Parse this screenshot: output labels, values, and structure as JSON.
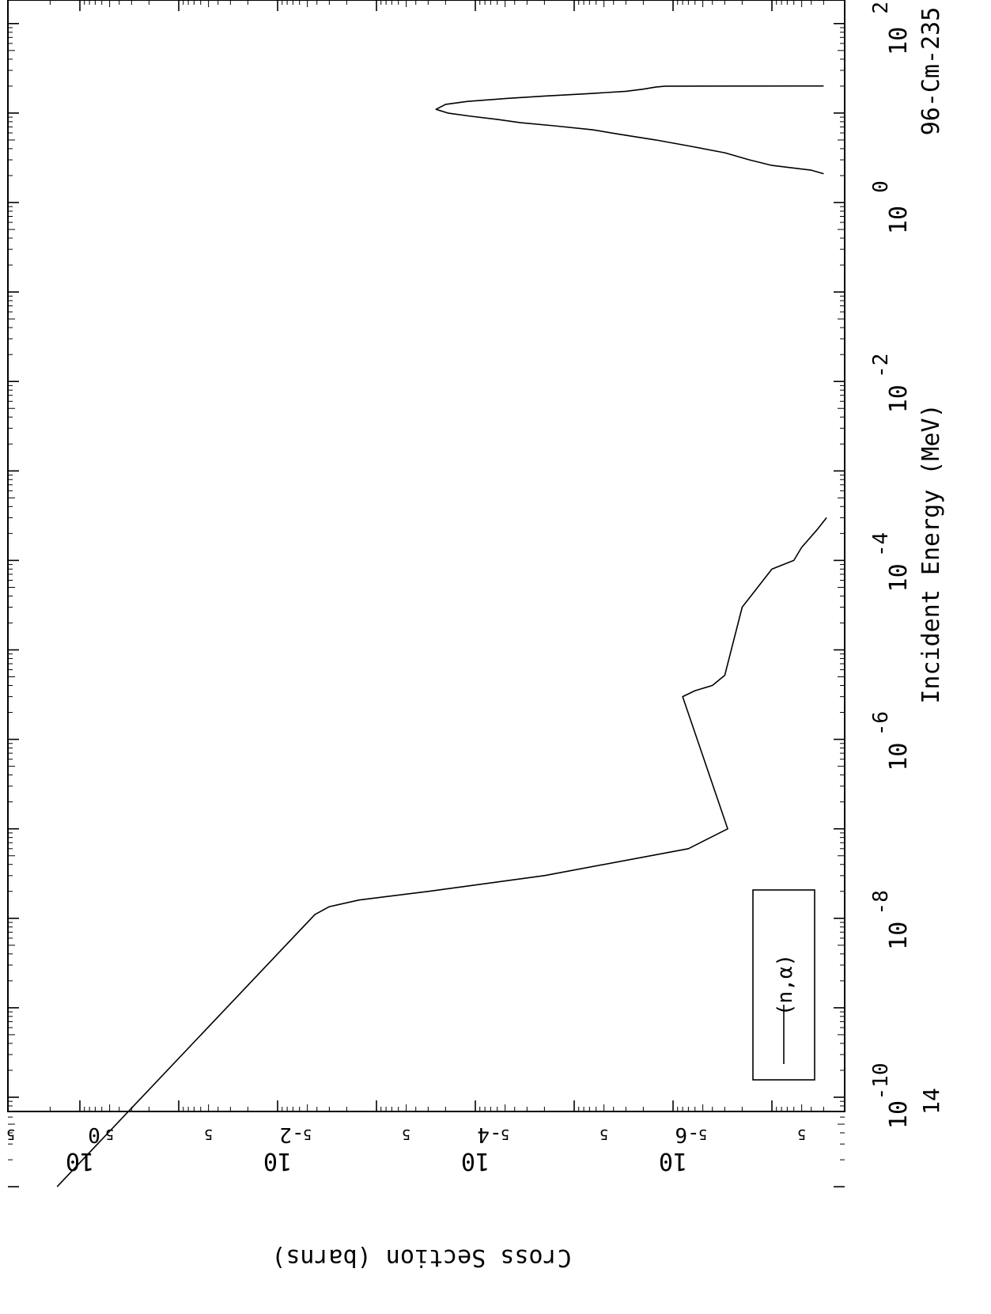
{
  "chart_data": {
    "type": "line",
    "orientation": "rotated-90",
    "x_scale": "log",
    "y_scale": "log",
    "xlim_MeV": [
      1e-11,
      200
    ],
    "ylim_barns": [
      3e-08,
      2
    ],
    "xlabel": "Incident Energy (MeV)",
    "ylabel": "Cross Section (barns)",
    "corner_label": "14",
    "material_label": "96-Cm-235",
    "x_ticks": [
      {
        "base": "10",
        "exp": "-10",
        "value": 1e-10
      },
      {
        "base": "10",
        "exp": "-8",
        "value": 1e-08
      },
      {
        "base": "10",
        "exp": "-6",
        "value": 1e-06
      },
      {
        "base": "10",
        "exp": "-4",
        "value": 0.0001
      },
      {
        "base": "10",
        "exp": "-2",
        "value": 0.01
      },
      {
        "base": "10",
        "exp": "0",
        "value": 1
      },
      {
        "base": "10",
        "exp": "2",
        "value": 100
      }
    ],
    "y_ticks": [
      {
        "base": "10",
        "exp": "0",
        "value": 1
      },
      {
        "base": "10",
        "exp": "-2",
        "value": 0.01
      },
      {
        "base": "10",
        "exp": "-4",
        "value": 0.0001
      },
      {
        "base": "10",
        "exp": "-6",
        "value": 1e-06
      }
    ],
    "y_minor_five_label": "5",
    "y_minor_five_values": [
      5,
      0.5,
      0.05,
      0.005,
      0.0005,
      5e-05,
      5e-06,
      5e-07,
      5e-08
    ],
    "legend": {
      "entries": [
        "(n,α)"
      ],
      "placement": "bottom-left"
    },
    "series": [
      {
        "name": "(n,α)",
        "x": [
          1e-11,
          1.1e-08,
          1.35e-08,
          1.6e-08,
          2e-08,
          3e-08,
          6e-08,
          1e-07,
          3e-06,
          3.5e-06,
          4e-06,
          5.2e-06,
          3e-05,
          8e-05,
          0.0001,
          0.00014,
          0.00022,
          0.0003
        ],
        "y": [
          1.7,
          0.0042,
          0.003,
          0.0015,
          0.0003,
          2e-05,
          7e-07,
          2.8e-07,
          8e-07,
          6e-07,
          4e-07,
          3e-07,
          2e-07,
          1e-07,
          6e-08,
          5e-08,
          3.5e-08,
          2.8e-08
        ]
      },
      {
        "name": "(n,α)",
        "x": [
          2.1,
          2.3,
          2.6,
          3.0,
          3.6,
          4.3,
          5.0,
          5.8,
          6.5,
          7.2,
          7.8,
          8.5,
          9.2,
          10.0,
          11.0,
          12.5,
          13.5,
          14.5,
          15.5,
          16.5,
          17.5,
          18.5,
          19.5,
          20.0,
          20.05
        ],
        "y": [
          3e-08,
          4e-08,
          1e-07,
          1.7e-07,
          3e-07,
          7e-07,
          1.5e-06,
          3.5e-06,
          6.5e-06,
          1.6e-05,
          3.5e-05,
          6e-05,
          0.00011,
          0.00019,
          0.00025,
          0.0002,
          0.00012,
          5e-05,
          2e-05,
          7e-06,
          3e-06,
          2e-06,
          1.5e-06,
          1.2e-06,
          3e-08
        ]
      }
    ]
  }
}
